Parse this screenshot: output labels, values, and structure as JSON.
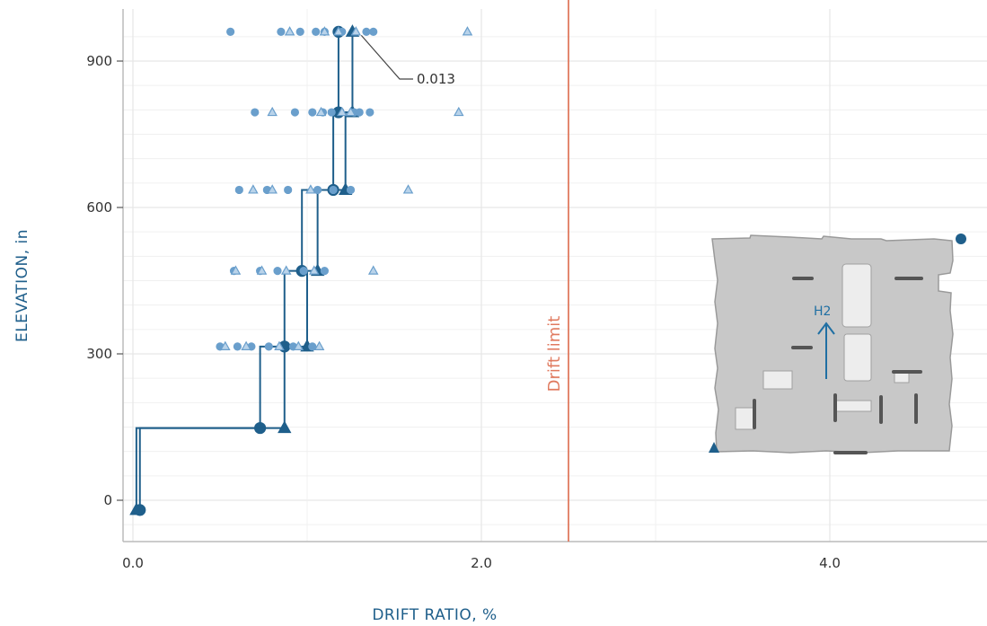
{
  "chart_data": {
    "type": "scatter",
    "xlabel": "DRIFT RATIO, %",
    "ylabel": "ELEVATION, in",
    "xlim": [
      0.0,
      5.0
    ],
    "ylim": [
      -80,
      980
    ],
    "x_ticks": [
      0.0,
      2.0,
      4.0
    ],
    "x_tick_labels": [
      "0.0",
      "2.0",
      "4.0"
    ],
    "y_ticks": [
      0,
      300,
      600,
      900
    ],
    "y_tick_labels": [
      "0",
      "300",
      "600",
      "900"
    ],
    "grid": true,
    "drift_limit": {
      "x": 2.5,
      "label": "Drift limit",
      "color": "#e07a5f"
    },
    "annotation": {
      "text": "0.013",
      "x": 1.28,
      "y": 960
    },
    "colors": {
      "series": "#1f5f8b",
      "light": "#6a9fcc",
      "light_fill": "#b9d3ea",
      "grid": "#e6e6e6",
      "axis": "#bbbbbb"
    },
    "series": [
      {
        "marker": "circle",
        "style": "mean-profile",
        "points": [
          [
            0.04,
            -20
          ],
          [
            0.04,
            148
          ],
          [
            0.73,
            148
          ],
          [
            0.73,
            315
          ],
          [
            0.87,
            315
          ],
          [
            0.87,
            470
          ],
          [
            0.97,
            470
          ],
          [
            0.97,
            636
          ],
          [
            1.15,
            636
          ],
          [
            1.15,
            795
          ],
          [
            1.18,
            795
          ],
          [
            1.18,
            960
          ]
        ]
      },
      {
        "marker": "triangle",
        "style": "max-profile",
        "points": [
          [
            0.02,
            -20
          ],
          [
            0.02,
            148
          ],
          [
            0.87,
            148
          ],
          [
            0.87,
            315
          ],
          [
            1.0,
            315
          ],
          [
            1.0,
            470
          ],
          [
            1.06,
            470
          ],
          [
            1.06,
            636
          ],
          [
            1.22,
            636
          ],
          [
            1.22,
            795
          ],
          [
            1.26,
            795
          ],
          [
            1.26,
            960
          ]
        ]
      },
      {
        "marker": "circle",
        "style": "individual-records",
        "points": [
          [
            0.56,
            960
          ],
          [
            0.85,
            960
          ],
          [
            0.96,
            960
          ],
          [
            1.05,
            960
          ],
          [
            1.1,
            960
          ],
          [
            1.2,
            960
          ],
          [
            1.34,
            960
          ],
          [
            1.38,
            960
          ],
          [
            0.7,
            795
          ],
          [
            0.93,
            795
          ],
          [
            1.03,
            795
          ],
          [
            1.09,
            795
          ],
          [
            1.14,
            795
          ],
          [
            1.27,
            795
          ],
          [
            1.3,
            795
          ],
          [
            1.36,
            795
          ],
          [
            0.61,
            636
          ],
          [
            0.77,
            636
          ],
          [
            0.89,
            636
          ],
          [
            1.06,
            636
          ],
          [
            1.15,
            636
          ],
          [
            1.25,
            636
          ],
          [
            0.58,
            470
          ],
          [
            0.73,
            470
          ],
          [
            0.83,
            470
          ],
          [
            0.98,
            470
          ],
          [
            1.1,
            470
          ],
          [
            0.5,
            315
          ],
          [
            0.6,
            315
          ],
          [
            0.68,
            315
          ],
          [
            0.78,
            315
          ],
          [
            0.92,
            315
          ],
          [
            1.03,
            315
          ]
        ]
      },
      {
        "marker": "triangle",
        "style": "individual-records",
        "points": [
          [
            0.9,
            960
          ],
          [
            1.1,
            960
          ],
          [
            1.18,
            960
          ],
          [
            1.28,
            960
          ],
          [
            1.92,
            960
          ],
          [
            0.8,
            795
          ],
          [
            1.08,
            795
          ],
          [
            1.2,
            795
          ],
          [
            1.25,
            795
          ],
          [
            1.87,
            795
          ],
          [
            0.69,
            636
          ],
          [
            0.8,
            636
          ],
          [
            1.02,
            636
          ],
          [
            1.58,
            636
          ],
          [
            0.59,
            470
          ],
          [
            0.74,
            470
          ],
          [
            0.88,
            470
          ],
          [
            1.04,
            470
          ],
          [
            1.38,
            470
          ],
          [
            0.53,
            315
          ],
          [
            0.65,
            315
          ],
          [
            0.84,
            315
          ],
          [
            0.95,
            315
          ],
          [
            1.07,
            315
          ]
        ]
      }
    ]
  },
  "inset": {
    "direction_label": "H2"
  }
}
